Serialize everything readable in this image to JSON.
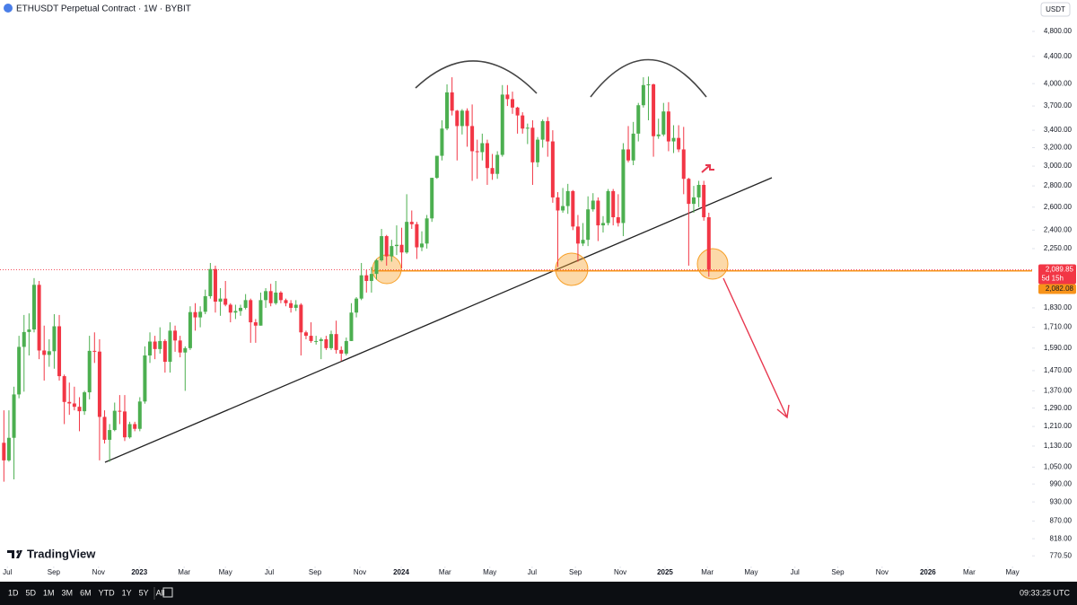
{
  "header": {
    "title": "ETHUSDT Perpetual Contract · 1W · BYBIT",
    "currency_button": "USDT",
    "logo": "TradingView"
  },
  "toolbar": {
    "ranges": [
      "1D",
      "5D",
      "1M",
      "3M",
      "6M",
      "YTD",
      "1Y",
      "5Y",
      "All"
    ],
    "time": "09:33:25 UTC"
  },
  "chart_data": {
    "type": "candlestick",
    "log_scale": true,
    "grid": false,
    "up_color": "#4caf50",
    "down_color": "#f23645",
    "level_color": "#f7931a",
    "ylim": [
      745,
      5355
    ],
    "yticks": [
      {
        "value": 4800,
        "label": "4,800.00"
      },
      {
        "value": 4400,
        "label": "4,400.00"
      },
      {
        "value": 4000,
        "label": "4,000.00"
      },
      {
        "value": 3700,
        "label": "3,700.00"
      },
      {
        "value": 3400,
        "label": "3,400.00"
      },
      {
        "value": 3200,
        "label": "3,200.00"
      },
      {
        "value": 3000,
        "label": "3,000.00"
      },
      {
        "value": 2800,
        "label": "2,800.00"
      },
      {
        "value": 2600,
        "label": "2,600.00"
      },
      {
        "value": 2400,
        "label": "2,400.00"
      },
      {
        "value": 2250,
        "label": "2,250.00"
      },
      {
        "value": 1830,
        "label": "1,830.00"
      },
      {
        "value": 1710,
        "label": "1,710.00"
      },
      {
        "value": 1590,
        "label": "1,590.00"
      },
      {
        "value": 1470,
        "label": "1,470.00"
      },
      {
        "value": 1370,
        "label": "1,370.00"
      },
      {
        "value": 1290,
        "label": "1,290.00"
      },
      {
        "value": 1210,
        "label": "1,210.00"
      },
      {
        "value": 1130,
        "label": "1,130.00"
      },
      {
        "value": 1050,
        "label": "1,050.00"
      },
      {
        "value": 990,
        "label": "990.00"
      },
      {
        "value": 930,
        "label": "930.00"
      },
      {
        "value": 870,
        "label": "870.00"
      },
      {
        "value": 818,
        "label": "818.00"
      },
      {
        "value": 770.5,
        "label": "770.50"
      }
    ],
    "xlim": [
      -0.77,
      204.2
    ],
    "xticks": [
      {
        "value": 0.7,
        "label": "Jul"
      },
      {
        "value": 9.9,
        "label": "Sep"
      },
      {
        "value": 18.8,
        "label": "Nov"
      },
      {
        "value": 26.9,
        "label": "2023"
      },
      {
        "value": 35.8,
        "label": "Mar"
      },
      {
        "value": 44.0,
        "label": "May"
      },
      {
        "value": 52.7,
        "label": "Jul"
      },
      {
        "value": 61.8,
        "label": "Sep"
      },
      {
        "value": 70.7,
        "label": "Nov"
      },
      {
        "value": 78.9,
        "label": "2024"
      },
      {
        "value": 87.6,
        "label": "Mar"
      },
      {
        "value": 96.5,
        "label": "May"
      },
      {
        "value": 104.9,
        "label": "Jul"
      },
      {
        "value": 113.5,
        "label": "Sep"
      },
      {
        "value": 122.4,
        "label": "Nov"
      },
      {
        "value": 131.3,
        "label": "2025"
      },
      {
        "value": 139.7,
        "label": "Mar"
      },
      {
        "value": 148.4,
        "label": "May"
      },
      {
        "value": 157.1,
        "label": "Jul"
      },
      {
        "value": 165.6,
        "label": "Sep"
      },
      {
        "value": 174.4,
        "label": "Nov"
      },
      {
        "value": 183.5,
        "label": "2026"
      },
      {
        "value": 191.7,
        "label": "Mar"
      },
      {
        "value": 200.3,
        "label": "May"
      }
    ],
    "open": [
      1143,
      1075,
      1163,
      1353,
      1597,
      1682,
      1697,
      1983,
      1577,
      1553,
      1573,
      1716,
      1442,
      1318,
      1311,
      1296,
      1276,
      1363,
      1575,
      1571,
      1251,
      1155,
      1195,
      1278,
      1275,
      1165,
      1220,
      1200,
      1320,
      1550,
      1627,
      1585,
      1630,
      1516,
      1690,
      1633,
      1566,
      1590,
      1803,
      1770,
      1805,
      1906,
      2095,
      1870,
      1890,
      1850,
      1800,
      1810,
      1830,
      1880,
      1740,
      1720,
      1880,
      1940,
      1860,
      1930,
      1880,
      1860,
      1830,
      1850,
      1680,
      1660,
      1630,
      1630,
      1640,
      1590,
      1670,
      1580,
      1560,
      1630,
      1800,
      1890,
      2050,
      2010,
      2060,
      2160,
      2350,
      2190,
      2270,
      2280,
      2220,
      2470,
      2450,
      2260,
      2290,
      2500,
      2880,
      3110,
      3420,
      3880,
      3640,
      3450,
      3640,
      3450,
      3160,
      3150,
      3250,
      2980,
      2920,
      3120,
      3850,
      3790,
      3680,
      3580,
      3420,
      3430,
      3040,
      3290,
      3510,
      3270,
      2690,
      2570,
      2610,
      2750,
      2430,
      2290,
      2320,
      2580,
      2660,
      2440,
      2460,
      2750,
      2510,
      2460,
      3180,
      3060,
      3360,
      3710,
      3980,
      3990,
      3330,
      3350,
      3630,
      3270,
      3310,
      3180,
      2870,
      2630,
      2690,
      2810,
      2510
    ],
    "high": [
      1280,
      1280,
      1390,
      1660,
      1785,
      1795,
      2030,
      2010,
      1720,
      1640,
      1790,
      1785,
      1450,
      1410,
      1390,
      1340,
      1370,
      1660,
      1680,
      1640,
      1280,
      1220,
      1315,
      1350,
      1350,
      1230,
      1230,
      1340,
      1600,
      1680,
      1660,
      1710,
      1640,
      1740,
      1720,
      1660,
      1600,
      1840,
      1860,
      1840,
      1950,
      2140,
      2120,
      1960,
      2010,
      1860,
      1850,
      1850,
      1920,
      1890,
      1760,
      1930,
      1960,
      1990,
      2010,
      1940,
      1890,
      1880,
      1880,
      1860,
      1690,
      1740,
      1660,
      1650,
      1660,
      1690,
      1750,
      1600,
      1650,
      1860,
      1900,
      2140,
      2090,
      2110,
      2170,
      2410,
      2360,
      2320,
      2440,
      2420,
      2720,
      2570,
      2470,
      2390,
      2530,
      2880,
      3110,
      3520,
      3990,
      4090,
      3650,
      3660,
      3670,
      3720,
      3290,
      3360,
      3290,
      3130,
      3160,
      3980,
      3980,
      3890,
      3690,
      3620,
      3480,
      3520,
      3320,
      3530,
      3560,
      3400,
      2740,
      2780,
      2820,
      2760,
      2530,
      2460,
      2700,
      2730,
      2690,
      2520,
      2770,
      2770,
      2720,
      3250,
      3450,
      3500,
      3740,
      4090,
      4100,
      4000,
      3540,
      3740,
      3750,
      3460,
      3460,
      3440,
      2880,
      2800,
      2850,
      2850,
      2550
    ],
    "low": [
      998,
      1070,
      1006,
      1335,
      1366,
      1550,
      1680,
      1530,
      1420,
      1490,
      1480,
      1420,
      1220,
      1260,
      1280,
      1190,
      1260,
      1330,
      1510,
      1075,
      1140,
      1070,
      1190,
      1220,
      1150,
      1160,
      1190,
      1190,
      1310,
      1510,
      1530,
      1560,
      1460,
      1460,
      1570,
      1540,
      1370,
      1580,
      1690,
      1710,
      1790,
      1890,
      1800,
      1780,
      1840,
      1740,
      1760,
      1780,
      1820,
      1620,
      1620,
      1720,
      1830,
      1840,
      1850,
      1860,
      1840,
      1800,
      1810,
      1550,
      1640,
      1620,
      1610,
      1530,
      1580,
      1580,
      1560,
      1520,
      1550,
      1630,
      1770,
      1880,
      1930,
      1930,
      2020,
      2150,
      2120,
      2150,
      2200,
      2100,
      2210,
      2410,
      2170,
      2230,
      2250,
      2470,
      2870,
      3060,
      3400,
      3580,
      3060,
      3350,
      3210,
      2850,
      2870,
      3060,
      2810,
      2860,
      2870,
      3100,
      3700,
      3600,
      3360,
      3360,
      3240,
      2810,
      2990,
      3200,
      3100,
      2640,
      2110,
      2550,
      2540,
      2400,
      2150,
      2270,
      2270,
      2560,
      2310,
      2380,
      2440,
      2440,
      2430,
      2350,
      3040,
      3010,
      3270,
      3680,
      3520,
      3100,
      3300,
      3330,
      3160,
      3140,
      3150,
      2720,
      2120,
      2550,
      2600,
      2480,
      2040
    ],
    "close": [
      1075,
      1163,
      1353,
      1597,
      1682,
      1697,
      1983,
      1577,
      1553,
      1573,
      1716,
      1442,
      1318,
      1311,
      1296,
      1276,
      1363,
      1575,
      1571,
      1251,
      1155,
      1195,
      1278,
      1275,
      1165,
      1220,
      1200,
      1320,
      1550,
      1627,
      1585,
      1630,
      1516,
      1690,
      1633,
      1566,
      1590,
      1803,
      1770,
      1805,
      1906,
      2095,
      1870,
      1890,
      1850,
      1800,
      1810,
      1830,
      1880,
      1740,
      1720,
      1880,
      1940,
      1860,
      1930,
      1880,
      1860,
      1830,
      1850,
      1680,
      1660,
      1630,
      1630,
      1640,
      1590,
      1670,
      1580,
      1560,
      1630,
      1800,
      1890,
      2050,
      2010,
      2060,
      2160,
      2350,
      2190,
      2270,
      2280,
      2220,
      2470,
      2450,
      2260,
      2290,
      2500,
      2880,
      3110,
      3420,
      3880,
      3640,
      3450,
      3640,
      3450,
      3160,
      3150,
      3250,
      2980,
      2920,
      3120,
      3850,
      3790,
      3680,
      3580,
      3420,
      3430,
      3040,
      3290,
      3510,
      3270,
      2690,
      2570,
      2610,
      2750,
      2430,
      2290,
      2320,
      2580,
      2660,
      2440,
      2460,
      2750,
      2510,
      2460,
      3180,
      3060,
      3360,
      3710,
      3980,
      3990,
      3330,
      3350,
      3630,
      3270,
      3310,
      3180,
      2870,
      2630,
      2690,
      2810,
      2510,
      2089.85
    ],
    "last_price_label": "2,089.85",
    "countdown": "5d 15h",
    "level": {
      "value": 2082.08,
      "label": "2,082.08"
    }
  }
}
